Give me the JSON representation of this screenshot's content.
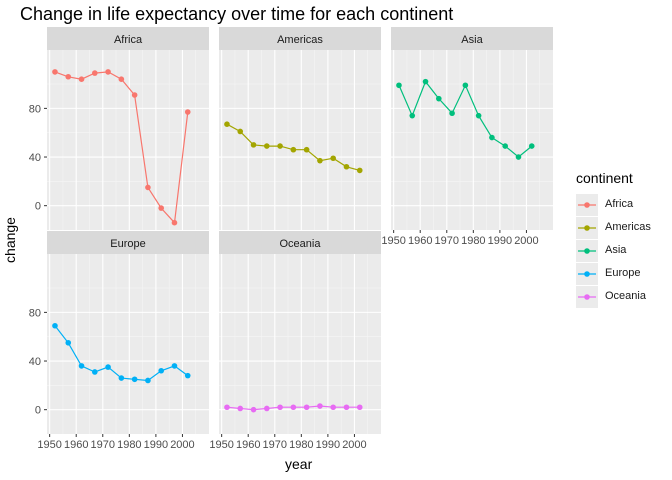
{
  "chart_data": {
    "type": "line",
    "title": "Change in life expectancy over time for each continent",
    "xlabel": "year",
    "ylabel": "change",
    "xlim": [
      1949,
      2010
    ],
    "ylim": [
      -20,
      128
    ],
    "x_ticks": [
      1950,
      1960,
      1970,
      1980,
      1990,
      2000
    ],
    "x_tick_labels": [
      "1950",
      "1960",
      "1970",
      "1980",
      "1990",
      "2000"
    ],
    "y_ticks": [
      0,
      40,
      80
    ],
    "y_tick_labels": [
      "0",
      "40",
      "80"
    ],
    "x": [
      1952,
      1957,
      1962,
      1967,
      1972,
      1977,
      1982,
      1987,
      1992,
      1997,
      2002,
      2007
    ],
    "facets": [
      {
        "name": "Africa",
        "color": "#F8766D",
        "values": [
          110,
          106,
          104,
          109,
          110,
          104,
          91,
          15,
          -2,
          -14,
          77
        ]
      },
      {
        "name": "Americas",
        "color": "#A3A500",
        "values": [
          67,
          61,
          50,
          49,
          49,
          46,
          46,
          37,
          39,
          32,
          29
        ]
      },
      {
        "name": "Asia",
        "color": "#00BF7D",
        "values": [
          99,
          74,
          102,
          88,
          76,
          99,
          74,
          56,
          49,
          40,
          49
        ]
      },
      {
        "name": "Europe",
        "color": "#00B0F6",
        "values": [
          69,
          55,
          36,
          31,
          35,
          26,
          25,
          24,
          32,
          36,
          28
        ]
      },
      {
        "name": "Oceania",
        "color": "#E76BF3",
        "values": [
          2,
          1,
          0,
          1,
          2,
          2,
          2,
          3,
          2,
          2,
          2
        ]
      }
    ],
    "legend": {
      "title": "continent",
      "position": "right"
    },
    "grid": true
  }
}
